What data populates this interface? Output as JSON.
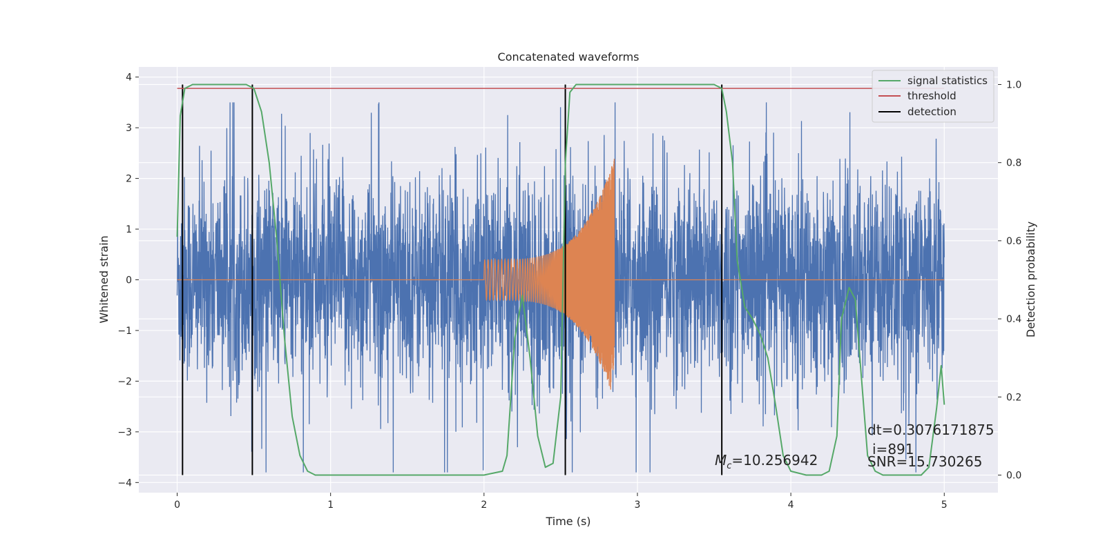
{
  "chart_data": {
    "type": "line",
    "title": "Concatenated waveforms",
    "xlabel": "Time (s)",
    "ylabel": "Whitened strain",
    "ylabel_right": "Detection probability",
    "xlim": [
      -0.25,
      5.35
    ],
    "ylim": [
      -4.2,
      4.2
    ],
    "ylim_right": [
      -0.045,
      1.045
    ],
    "xticks": [
      0,
      1,
      2,
      3,
      4,
      5
    ],
    "yticks": [
      -4,
      -3,
      -2,
      -1,
      0,
      1,
      2,
      3,
      4
    ],
    "yticks_right": [
      0.0,
      0.2,
      0.4,
      0.6,
      0.8,
      1.0
    ],
    "grid": true,
    "legend_position": "top-right",
    "colors": {
      "strain": "#4c72b0",
      "injection": "#dd8452",
      "signal_statistics": "#55a868",
      "threshold": "#c44e52",
      "detection": "#000000",
      "background": "#eaeaf2",
      "grid": "#ffffff"
    },
    "series": [
      {
        "name": "signal statistics",
        "axis": "right",
        "x": [
          0.0,
          0.02,
          0.05,
          0.1,
          0.2,
          0.3,
          0.4,
          0.45,
          0.5,
          0.55,
          0.6,
          0.65,
          0.7,
          0.75,
          0.8,
          0.85,
          0.9,
          1.0,
          1.5,
          1.75,
          2.0,
          2.12,
          2.15,
          2.2,
          2.25,
          2.3,
          2.35,
          2.4,
          2.45,
          2.5,
          2.53,
          2.56,
          2.6,
          2.7,
          3.0,
          3.3,
          3.5,
          3.55,
          3.58,
          3.62,
          3.65,
          3.7,
          3.75,
          3.8,
          3.85,
          3.9,
          3.95,
          4.0,
          4.1,
          4.2,
          4.25,
          4.3,
          4.33,
          4.38,
          4.42,
          4.46,
          4.5,
          4.55,
          4.6,
          4.7,
          4.8,
          4.85,
          4.9,
          4.95,
          4.98,
          5.0
        ],
        "y": [
          0.61,
          0.92,
          0.99,
          1.0,
          1.0,
          1.0,
          1.0,
          1.0,
          0.99,
          0.93,
          0.8,
          0.6,
          0.35,
          0.15,
          0.05,
          0.01,
          0.0,
          0.0,
          0.0,
          0.0,
          0.0,
          0.01,
          0.05,
          0.35,
          0.46,
          0.3,
          0.1,
          0.02,
          0.03,
          0.2,
          0.8,
          0.98,
          1.0,
          1.0,
          1.0,
          1.0,
          1.0,
          0.99,
          0.93,
          0.8,
          0.55,
          0.43,
          0.4,
          0.36,
          0.3,
          0.18,
          0.05,
          0.01,
          0.0,
          0.0,
          0.01,
          0.1,
          0.4,
          0.48,
          0.45,
          0.25,
          0.05,
          0.01,
          0.0,
          0.0,
          0.0,
          0.0,
          0.02,
          0.17,
          0.28,
          0.18
        ]
      },
      {
        "name": "threshold",
        "axis": "right",
        "x": [
          0.0,
          5.0
        ],
        "y": [
          0.99,
          0.99
        ]
      },
      {
        "name": "detection",
        "axis": "right",
        "x_positions": [
          0.035,
          0.49,
          2.53,
          3.55
        ],
        "y_range": [
          0.0,
          1.0
        ]
      },
      {
        "axis": "left",
        "description_range": [
          0.0,
          5.0
        ],
        "amplitude_envelope": 3.5
      },
      {
        "axis": "left",
        "x_start": 2.0,
        "x_end": 2.85,
        "amplitude_start": 0.4,
        "amplitude_end": 2.4
      }
    ],
    "legend": [
      "signal statistics",
      "threshold",
      "detection"
    ]
  },
  "annotations": {
    "mc": "M",
    "mc_sub": "c",
    "mc_value": "=10.256942",
    "dt": "dt=0.3076171875",
    "i": "i=891",
    "snr": "SNR=15.730265"
  }
}
